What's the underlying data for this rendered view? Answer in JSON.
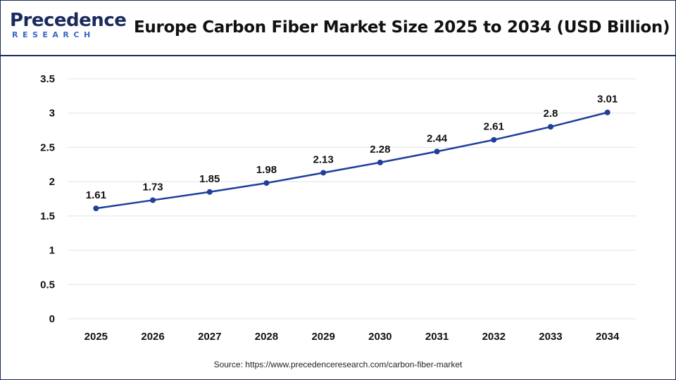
{
  "brand": {
    "logo_line1": "Precedence",
    "logo_line2": "RESEARCH"
  },
  "header": {
    "title": "Europe Carbon Fiber Market Size 2025 to 2034 (USD Billion)"
  },
  "footer": {
    "source": "Source: https://www.precedenceresearch.com/carbon-fiber-market"
  },
  "colors": {
    "line": "#1f3f99",
    "point": "#1f3f99",
    "grid": "#e3e3e3",
    "frame": "#1b2a5c"
  },
  "chart_data": {
    "type": "line",
    "title": "Europe Carbon Fiber Market Size 2025 to 2034 (USD Billion)",
    "xlabel": "",
    "ylabel": "",
    "categories": [
      "2025",
      "2026",
      "2027",
      "2028",
      "2029",
      "2030",
      "2031",
      "2032",
      "2033",
      "2034"
    ],
    "series": [
      {
        "values": [
          1.61,
          1.73,
          1.85,
          1.98,
          2.13,
          2.28,
          2.44,
          2.61,
          2.8,
          3.01
        ]
      }
    ],
    "data_labels": [
      "1.61",
      "1.73",
      "1.85",
      "1.98",
      "2.13",
      "2.28",
      "2.44",
      "2.61",
      "2.8",
      "3.01"
    ],
    "ylim": [
      0,
      3.5
    ],
    "yticks": [
      0,
      0.5,
      1,
      1.5,
      2,
      2.5,
      3,
      3.5
    ],
    "ytick_labels": [
      "0",
      "0.5",
      "1",
      "1.5",
      "2",
      "2.5",
      "3",
      "3.5"
    ],
    "grid": true,
    "legend": "none"
  }
}
